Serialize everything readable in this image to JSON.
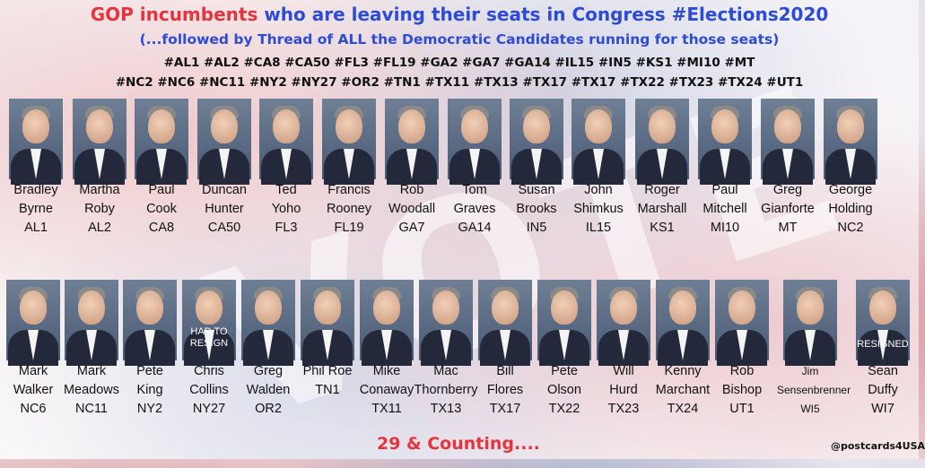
{
  "title": {
    "part_red": "GOP incumbents",
    "part_blue": "who are leaving their seats in Congress  #Elections2020"
  },
  "subtitle": "(...followed by Thread of ALL the Democratic Candidates running for those seats)",
  "hashtags_line1": "#AL1 #AL2 #CA8 #CA50 #FL3 #FL19 #GA2 #GA7 #GA14 #IL15 #IN5 #KS1 #MI10 #MT",
  "hashtags_line2": "#NC2 #NC6 #NC11 #NY2 #NY27 #OR2 #TN1 #TX11 #TX13 #TX17 #TX17 #TX22 #TX23 #TX24 #UT1",
  "row1": [
    {
      "first": "Bradley",
      "last": "Byrne",
      "district": "AL1"
    },
    {
      "first": "Martha",
      "last": "Roby",
      "district": "AL2"
    },
    {
      "first": "Paul",
      "last": "Cook",
      "district": "CA8"
    },
    {
      "first": "Duncan",
      "last": "Hunter",
      "district": "CA50"
    },
    {
      "first": "Ted",
      "last": "Yoho",
      "district": "FL3"
    },
    {
      "first": "Francis",
      "last": "Rooney",
      "district": "FL19"
    },
    {
      "first": "Rob",
      "last": "Woodall",
      "district": "GA7"
    },
    {
      "first": "Tom",
      "last": "Graves",
      "district": "GA14"
    },
    {
      "first": "Susan",
      "last": "Brooks",
      "district": "IN5"
    },
    {
      "first": "John",
      "last": "Shimkus",
      "district": "IL15"
    },
    {
      "first": "Roger",
      "last": "Marshall",
      "district": "KS1"
    },
    {
      "first": "Paul",
      "last": "Mitchell",
      "district": "MI10"
    },
    {
      "first": "Greg",
      "last": "Gianforte",
      "district": "MT"
    },
    {
      "first": "George",
      "last": "Holding",
      "district": "NC2"
    }
  ],
  "row2": [
    {
      "first": "Mark",
      "last": "Walker",
      "district": "NC6",
      "overlay": ""
    },
    {
      "first": "Mark",
      "last": "Meadows",
      "district": "NC11",
      "overlay": ""
    },
    {
      "first": "Pete",
      "last": "King",
      "district": "NY2",
      "overlay": ""
    },
    {
      "first": "Chris",
      "last": "Collins",
      "district": "NY27",
      "overlay": "HAD TO RESIGN"
    },
    {
      "first": "Greg",
      "last": "Walden",
      "district": "OR2",
      "overlay": ""
    },
    {
      "first": "Phil Roe",
      "last": "",
      "district": "TN1",
      "overlay": ""
    },
    {
      "first": "Mike",
      "last": "Conaway",
      "district": "TX11",
      "overlay": ""
    },
    {
      "first": "Mac",
      "last": "Thornberry",
      "district": "TX13",
      "overlay": ""
    },
    {
      "first": "Bill",
      "last": "Flores",
      "district": "TX17",
      "overlay": ""
    },
    {
      "first": "Pete",
      "last": "Olson",
      "district": "TX22",
      "overlay": ""
    },
    {
      "first": "Will",
      "last": "Hurd",
      "district": "TX23",
      "overlay": ""
    },
    {
      "first": "Kenny",
      "last": "Marchant",
      "district": "TX24",
      "overlay": ""
    },
    {
      "first": "Rob",
      "last": "Bishop",
      "district": "UT1",
      "overlay": ""
    },
    {
      "first": "Jim",
      "last": "Sensenbrenner",
      "district": "WI5",
      "overlay": ""
    },
    {
      "first": "Sean",
      "last": "Duffy",
      "district": "WI7",
      "overlay": "RESIGNED"
    }
  ],
  "footer": "29 & Counting....",
  "handle": "@postcards4USA",
  "colors": {
    "accent_red": "#e8333f",
    "accent_blue": "#2c4bd8"
  }
}
